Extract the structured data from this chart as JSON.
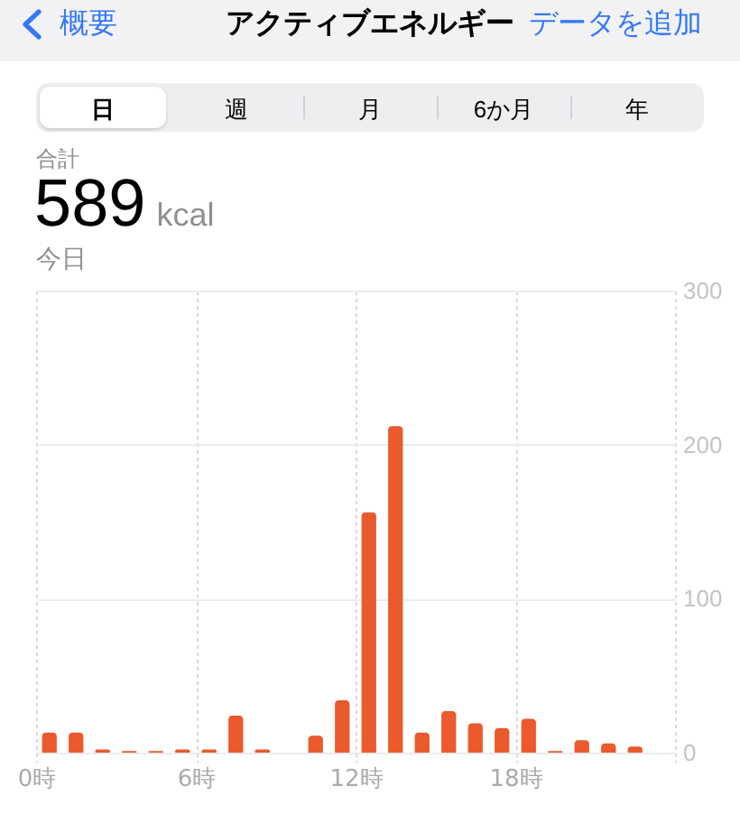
{
  "chart_data": {
    "type": "histogram",
    "title": "アクティブエネルギー",
    "annotations": [
      "概要",
      "データを追加",
      "日",
      "週",
      "月",
      "6か月",
      "年",
      "合計",
      "589",
      "kcal",
      "今日"
    ],
    "bins": [
      0,
      1,
      2,
      3,
      4,
      5,
      6,
      7,
      8,
      9,
      10,
      11,
      12,
      13,
      14,
      15,
      16,
      17,
      18,
      19,
      20,
      21,
      22,
      23
    ],
    "values": [
      13,
      13,
      2,
      1,
      1,
      2,
      2,
      24,
      2,
      null,
      11,
      34,
      156,
      212,
      13,
      27,
      19,
      16,
      22,
      1,
      8,
      6,
      4
    ],
    "color": "#ea5a2c",
    "xlim": [
      0,
      24
    ],
    "xticks": [
      {
        "value": 0,
        "label": "0時"
      },
      {
        "value": 6,
        "label": "6時"
      },
      {
        "value": 12,
        "label": "12時"
      },
      {
        "value": 18,
        "label": "18時"
      },
      {
        "value": 24,
        "label": null
      }
    ],
    "ylim": [
      0,
      300
    ],
    "yticks": [
      0,
      100,
      200,
      300
    ],
    "grid": true
  }
}
